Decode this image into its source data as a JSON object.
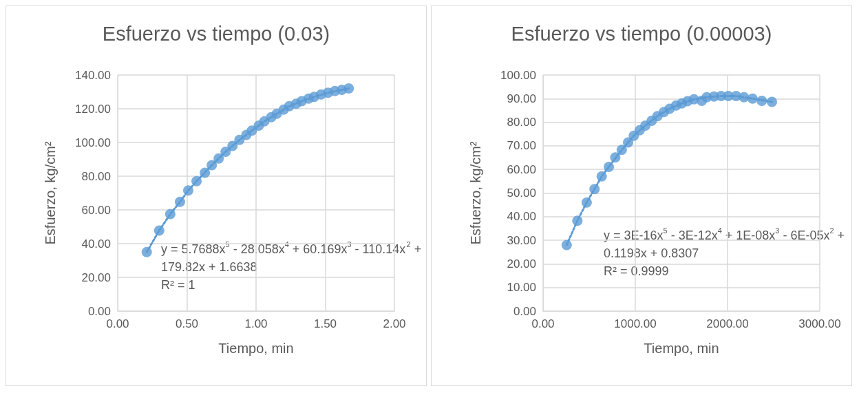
{
  "chart_data": [
    {
      "type": "scatter",
      "title": "Esfuerzo vs tiempo (0.03)",
      "xlabel": "Tiempo, min",
      "ylabel": "Esfuerzo, kg/cm²",
      "grid": true,
      "marker": "circle",
      "xlim": [
        0,
        2
      ],
      "xticks": [
        {
          "value": 0,
          "label": "0.00"
        },
        {
          "value": 0.5,
          "label": "0.50"
        },
        {
          "value": 1,
          "label": "1.00"
        },
        {
          "value": 1.5,
          "label": "1.50"
        },
        {
          "value": 2,
          "label": "2.00"
        }
      ],
      "ylim": [
        0,
        140
      ],
      "yticks": [
        {
          "value": 0,
          "label": "0.00"
        },
        {
          "value": 20,
          "label": "20.00"
        },
        {
          "value": 40,
          "label": "40.00"
        },
        {
          "value": 60,
          "label": "60.00"
        },
        {
          "value": 80,
          "label": "80.00"
        },
        {
          "value": 100,
          "label": "100.00"
        },
        {
          "value": 120,
          "label": "120.00"
        },
        {
          "value": 140,
          "label": "140.00"
        }
      ],
      "annotations": [
        "y = 5.7688x$^{5}$ - 28.058x$^{4}$ + 60.169x$^{3}$ - 110.14x$^{2}$ + 179.82x + 1.6638",
        "R² = 1"
      ],
      "series": [
        {
          "color": "#5b9bd5",
          "x": [
            0.21,
            0.3,
            0.38,
            0.45,
            0.51,
            0.57,
            0.63,
            0.68,
            0.73,
            0.78,
            0.83,
            0.88,
            0.93,
            0.97,
            1.02,
            1.06,
            1.11,
            1.15,
            1.2,
            1.24,
            1.29,
            1.33,
            1.38,
            1.42,
            1.47,
            1.52,
            1.57,
            1.62,
            1.67
          ],
          "values": [
            35,
            47.8,
            57.5,
            64.8,
            71.5,
            77,
            82,
            86.5,
            90.5,
            94.5,
            98,
            101.5,
            104.5,
            107,
            110,
            112.5,
            115,
            117,
            119.5,
            121.5,
            123,
            124.5,
            126,
            127,
            128.5,
            129.5,
            130.5,
            131.2,
            132
          ]
        },
        {
          "type": "line",
          "line_style": "dotted",
          "marker": "none",
          "color": "#5b9bd5",
          "x": [
            0.21,
            0.3,
            0.38,
            0.45,
            0.51,
            0.57,
            0.68,
            0.78,
            0.88,
            0.97,
            1.06,
            1.15,
            1.24,
            1.33,
            1.42,
            1.52,
            1.62,
            1.67
          ],
          "values": [
            35,
            47.8,
            57.5,
            64.8,
            71.5,
            77,
            86.5,
            94.5,
            101.5,
            107,
            112.5,
            117,
            121.5,
            124.5,
            127,
            129.5,
            131.2,
            132
          ]
        }
      ]
    },
    {
      "type": "scatter",
      "title": "Esfuerzo vs tiempo (0.00003)",
      "xlabel": "Tiempo, min",
      "ylabel": "Esfuerzo, kg/cm²",
      "grid": true,
      "marker": "circle",
      "xlim": [
        0,
        3000
      ],
      "xticks": [
        {
          "value": 0,
          "label": "0.00"
        },
        {
          "value": 1000,
          "label": "1000.00"
        },
        {
          "value": 2000,
          "label": "2000.00"
        },
        {
          "value": 3000,
          "label": "3000.00"
        }
      ],
      "ylim": [
        0,
        100
      ],
      "yticks": [
        {
          "value": 0,
          "label": "0.00"
        },
        {
          "value": 10,
          "label": "10.00"
        },
        {
          "value": 20,
          "label": "20.00"
        },
        {
          "value": 30,
          "label": "30.00"
        },
        {
          "value": 40,
          "label": "40.00"
        },
        {
          "value": 50,
          "label": "50.00"
        },
        {
          "value": 60,
          "label": "60.00"
        },
        {
          "value": 70,
          "label": "70.00"
        },
        {
          "value": 80,
          "label": "80.00"
        },
        {
          "value": 90,
          "label": "90.00"
        },
        {
          "value": 100,
          "label": "100.00"
        }
      ],
      "annotations": [
        "y = 3E-16x$^{5}$ - 3E-12x$^{4}$ + 1E-08x$^{3}$ - 6E-05x$^{2}$ + 0.1198x + 0.8307",
        "R² = 0.9999"
      ],
      "series": [
        {
          "color": "#5b9bd5",
          "x": [
            256,
            372,
            473,
            558,
            636,
            713,
            783,
            853,
            922,
            984,
            1047,
            1109,
            1178,
            1240,
            1310,
            1372,
            1442,
            1504,
            1566,
            1636,
            1721,
            1775,
            1853,
            1930,
            2008,
            2093,
            2178,
            2271,
            2372,
            2481
          ],
          "values": [
            28,
            38.3,
            46,
            51.7,
            57.1,
            61.1,
            65.1,
            68.3,
            71.4,
            74.3,
            76.6,
            78.6,
            80.6,
            82.6,
            84.3,
            85.7,
            87.1,
            88,
            88.9,
            89.7,
            89.1,
            90.6,
            90.9,
            91.1,
            91.1,
            91.1,
            90.6,
            90,
            89.1,
            88.6
          ]
        },
        {
          "type": "line",
          "line_style": "dotted",
          "marker": "none",
          "color": "#5b9bd5",
          "x": [
            256,
            372,
            473,
            558,
            636,
            713,
            853,
            984,
            1109,
            1240,
            1372,
            1504,
            1636,
            1775,
            1930,
            2093,
            2271,
            2481
          ],
          "values": [
            28,
            38.3,
            46,
            51.7,
            57.1,
            61.1,
            68.3,
            74.3,
            78.6,
            82.6,
            85.7,
            88,
            89.7,
            90.6,
            91.1,
            91.1,
            90,
            88.6
          ]
        }
      ]
    }
  ]
}
